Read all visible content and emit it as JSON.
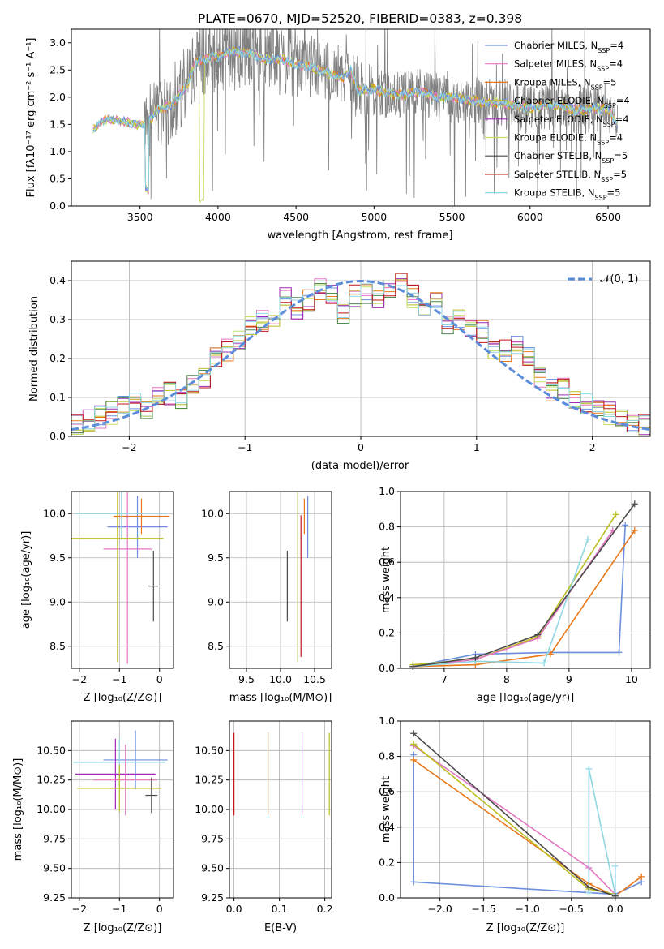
{
  "figure": {
    "title": "PLATE=0670, MJD=52520, FIBERID=0383, z=0.398"
  },
  "colors": {
    "Chabrier MILES": "#6a8fdc",
    "Salpeter MILES": "#e377c2",
    "Kroupa MILES": "#e8781a",
    "Chabrier ELODIE": "#bcbd22",
    "Salpeter ELODIE": "#9b2bb5",
    "Kroupa ELODIE": "#c5e06a",
    "Chabrier STELIB": "#4a4a4a",
    "Salpeter STELIB": "#c0141a",
    "Kroupa STELIB": "#8fd6e2",
    "data": "#808080",
    "normal": "#5b8ddb",
    "green": "#4f8a4f"
  },
  "chart_data": [
    {
      "id": "spectrum",
      "type": "line",
      "title": "PLATE=0670, MJD=52520, FIBERID=0383, z=0.398",
      "xlabel": "wavelength [Angstrom, rest frame]",
      "ylabel": "Flux [fλ10⁻¹⁷ erg cm⁻² s⁻¹ A⁻¹]",
      "xlim": [
        3060,
        6770
      ],
      "ylim": [
        0,
        3.25
      ],
      "xticks": [
        3500,
        4000,
        4500,
        5000,
        5500,
        6000,
        6500
      ],
      "yticks": [
        "0.0",
        "0.5",
        "1.0",
        "1.5",
        "2.0",
        "2.5",
        "3.0"
      ],
      "legend_position": "top-right",
      "legend": [
        {
          "name": "Chabrier MILES",
          "nssp": "4"
        },
        {
          "name": "Salpeter MILES",
          "nssp": "4"
        },
        {
          "name": "Kroupa MILES",
          "nssp": "5"
        },
        {
          "name": "Chabrier ELODIE",
          "nssp": "4"
        },
        {
          "name": "Salpeter ELODIE",
          "nssp": "4"
        },
        {
          "name": "Kroupa ELODIE",
          "nssp": "4"
        },
        {
          "name": "Chabrier STELIB",
          "nssp": "5"
        },
        {
          "name": "Salpeter STELIB",
          "nssp": "5"
        },
        {
          "name": "Kroupa STELIB",
          "nssp": "5"
        }
      ],
      "continuum_knots": [
        [
          3200,
          1.4
        ],
        [
          3250,
          1.55
        ],
        [
          3300,
          1.6
        ],
        [
          3400,
          1.55
        ],
        [
          3500,
          1.5
        ],
        [
          3550,
          1.5
        ],
        [
          3600,
          1.75
        ],
        [
          3700,
          1.85
        ],
        [
          3800,
          2.2
        ],
        [
          3850,
          2.6
        ],
        [
          3900,
          2.7
        ],
        [
          4000,
          2.75
        ],
        [
          4100,
          2.85
        ],
        [
          4200,
          2.8
        ],
        [
          4300,
          2.7
        ],
        [
          4400,
          2.7
        ],
        [
          4500,
          2.6
        ],
        [
          4600,
          2.55
        ],
        [
          4700,
          2.45
        ],
        [
          4800,
          2.35
        ],
        [
          4850,
          2.5
        ],
        [
          4900,
          2.1
        ],
        [
          5000,
          2.15
        ],
        [
          5100,
          2.05
        ],
        [
          5200,
          2.05
        ],
        [
          5300,
          2.1
        ],
        [
          5400,
          2.0
        ],
        [
          5500,
          2.0
        ],
        [
          5600,
          1.95
        ],
        [
          5700,
          1.9
        ],
        [
          5800,
          1.9
        ],
        [
          5900,
          1.85
        ],
        [
          6000,
          1.8
        ],
        [
          6100,
          1.85
        ],
        [
          6200,
          1.85
        ],
        [
          6300,
          1.75
        ],
        [
          6400,
          1.8
        ],
        [
          6500,
          1.78
        ],
        [
          6560,
          1.5
        ]
      ]
    },
    {
      "id": "residuals",
      "type": "line",
      "xlabel": "(data-model)/error",
      "ylabel": "Normed distribution",
      "xlim": [
        -2.5,
        2.5
      ],
      "ylim": [
        0,
        0.45
      ],
      "xticks": [
        "−2",
        "−1",
        "0",
        "1",
        "2"
      ],
      "yticks": [
        "0.0",
        "0.1",
        "0.2",
        "0.3",
        "0.4"
      ],
      "legend_position": "top-right",
      "legend": [
        {
          "name": "𝒩(0, 1)"
        }
      ],
      "bin_edges": [
        -2.5,
        -2.4,
        -2.3,
        -2.2,
        -2.1,
        -2.0,
        -1.9,
        -1.8,
        -1.7,
        -1.6,
        -1.5,
        -1.4,
        -1.3,
        -1.2,
        -1.1,
        -1.0,
        -0.9,
        -0.8,
        -0.7,
        -0.6,
        -0.5,
        -0.4,
        -0.3,
        -0.2,
        -0.1,
        0.0,
        0.1,
        0.2,
        0.3,
        0.4,
        0.5,
        0.6,
        0.7,
        0.8,
        0.9,
        1.0,
        1.1,
        1.2,
        1.3,
        1.4,
        1.5,
        1.6,
        1.7,
        1.8,
        1.9,
        2.0,
        2.1,
        2.2,
        2.3,
        2.4,
        2.5
      ],
      "base_hist": [
        0.03,
        0.04,
        0.05,
        0.06,
        0.08,
        0.09,
        0.07,
        0.1,
        0.11,
        0.1,
        0.14,
        0.15,
        0.2,
        0.22,
        0.25,
        0.29,
        0.3,
        0.3,
        0.36,
        0.33,
        0.35,
        0.38,
        0.37,
        0.32,
        0.36,
        0.37,
        0.35,
        0.38,
        0.4,
        0.36,
        0.33,
        0.34,
        0.29,
        0.3,
        0.27,
        0.27,
        0.22,
        0.22,
        0.23,
        0.2,
        0.15,
        0.12,
        0.12,
        0.1,
        0.08,
        0.07,
        0.06,
        0.05,
        0.04,
        0.03
      ]
    },
    {
      "id": "age_vs_z",
      "type": "scatter",
      "xlabel": "Z [log₁₀(Z/Z⊙)]",
      "ylabel": "age  [log₁₀(age/yr)]",
      "xlim": [
        -2.2,
        0.35
      ],
      "ylim": [
        8.25,
        10.25
      ],
      "xticks": [
        -2,
        -1,
        0
      ],
      "yticks": [
        "8.5",
        "9.0",
        "9.5",
        "10.0"
      ],
      "points": [
        {
          "model": "Chabrier MILES",
          "x": -0.55,
          "y": 9.85,
          "xerr": 0.75,
          "yerr": 0.35
        },
        {
          "model": "Kroupa MILES",
          "x": -0.45,
          "y": 9.97,
          "xerr": 0.7,
          "yerr": 0.2
        },
        {
          "model": "Salpeter MILES",
          "x": -0.8,
          "y": 9.6,
          "xerr": 0.6,
          "yerr": 1.3
        },
        {
          "model": "Kroupa STELIB",
          "x": -0.95,
          "y": 10.0,
          "xerr": 1.15,
          "yerr": 0.3
        },
        {
          "model": "Chabrier ELODIE",
          "x": -1.05,
          "y": 9.72,
          "xerr": 1.15,
          "yerr": 1.4
        },
        {
          "model": "Chabrier STELIB",
          "x": -0.15,
          "y": 9.18,
          "xerr": 0.12,
          "yerr": 0.4
        }
      ]
    },
    {
      "id": "age_vs_mass",
      "type": "scatter",
      "xlabel": "mass [log₁₀(M/M⊙)]",
      "ylabel": "",
      "xlim": [
        9.25,
        10.75
      ],
      "ylim": [
        8.25,
        10.25
      ],
      "xticks": [
        "9.5",
        "10.0",
        "10.5"
      ],
      "yticks": [
        "8.5",
        "9.0",
        "9.5",
        "10.0"
      ],
      "points": [
        {
          "model": "Chabrier MILES",
          "x": 10.4,
          "y": 9.85,
          "yerr": 0.35
        },
        {
          "model": "Kroupa MILES",
          "x": 10.35,
          "y": 9.97,
          "yerr": 0.2
        },
        {
          "model": "Salpeter STELIB",
          "x": 10.3,
          "y": 9.18,
          "yerr": 0.8
        },
        {
          "model": "Kroupa ELODIE",
          "x": 10.25,
          "y": 9.72,
          "yerr": 1.4
        },
        {
          "model": "Chabrier STELIB",
          "x": 10.1,
          "y": 9.18,
          "yerr": 0.4
        }
      ]
    },
    {
      "id": "mass_weight_vs_age",
      "type": "line",
      "xlabel": "age  [log₁₀(age/yr)]",
      "ylabel": "mass weight",
      "xlim": [
        6.3,
        10.3
      ],
      "ylim": [
        0,
        1.0
      ],
      "xticks": [
        "7",
        "8",
        "9",
        "10"
      ],
      "yticks": [
        "0.0",
        "0.2",
        "0.4",
        "0.6",
        "0.8",
        "1.0"
      ],
      "series": [
        {
          "model": "Chabrier MILES",
          "x": [
            6.5,
            7.5,
            8.7,
            9.8,
            9.9
          ],
          "y": [
            0.01,
            0.08,
            0.09,
            0.09,
            0.81
          ]
        },
        {
          "model": "Kroupa MILES",
          "x": [
            6.5,
            7.5,
            8.7,
            10.05
          ],
          "y": [
            0.01,
            0.02,
            0.08,
            0.78
          ]
        },
        {
          "model": "Chabrier ELODIE",
          "x": [
            6.5,
            7.5,
            8.5,
            9.75
          ],
          "y": [
            0.02,
            0.05,
            0.18,
            0.87
          ]
        },
        {
          "model": "Salpeter MILES",
          "x": [
            6.5,
            7.5,
            8.5,
            9.7
          ],
          "y": [
            0.01,
            0.05,
            0.17,
            0.78
          ]
        },
        {
          "model": "Kroupa STELIB",
          "x": [
            6.5,
            7.5,
            8.6,
            9.3
          ],
          "y": [
            0.01,
            0.04,
            0.03,
            0.73
          ]
        },
        {
          "model": "Chabrier STELIB",
          "x": [
            6.5,
            7.5,
            8.5,
            10.05
          ],
          "y": [
            0.01,
            0.06,
            0.19,
            0.93
          ]
        }
      ]
    },
    {
      "id": "mass_vs_z",
      "type": "scatter",
      "xlabel": "Z [log₁₀(Z/Z⊙)]",
      "ylabel": "mass [log₁₀(M/M⊙)]",
      "xlim": [
        -2.2,
        0.35
      ],
      "ylim": [
        9.25,
        10.75
      ],
      "xticks": [
        -2,
        -1,
        0
      ],
      "yticks": [
        "9.25",
        "9.50",
        "9.75",
        "10.00",
        "10.25",
        "10.50"
      ],
      "points": [
        {
          "model": "Chabrier MILES",
          "x": -0.6,
          "y": 10.42,
          "xerr": 0.8,
          "yerr": 0.25
        },
        {
          "model": "Kroupa STELIB",
          "x": -1.0,
          "y": 10.4,
          "xerr": 1.15,
          "yerr": 0.2
        },
        {
          "model": "Salpeter ELODIE",
          "x": -1.1,
          "y": 10.3,
          "xerr": 1.0,
          "yerr": 0.3
        },
        {
          "model": "Salpeter MILES",
          "x": -0.85,
          "y": 10.25,
          "xerr": 0.8,
          "yerr": 0.3
        },
        {
          "model": "Chabrier ELODIE",
          "x": -1.0,
          "y": 10.18,
          "xerr": 1.05,
          "yerr": 0.2
        },
        {
          "model": "Chabrier STELIB",
          "x": -0.2,
          "y": 10.12,
          "xerr": 0.15,
          "yerr": 0.15
        }
      ]
    },
    {
      "id": "mass_vs_ebv",
      "type": "scatter",
      "xlabel": "E(B-V)",
      "ylabel": "",
      "xlim": [
        -0.01,
        0.215
      ],
      "ylim": [
        9.25,
        10.75
      ],
      "xticks": [
        "0.0",
        "0.1",
        "0.2"
      ],
      "yticks": [
        "9.25",
        "9.50",
        "9.75",
        "10.00",
        "10.25",
        "10.50"
      ],
      "points": [
        {
          "model": "Salpeter STELIB",
          "x": 0.0,
          "y": 10.3,
          "yerr": 0.35
        },
        {
          "model": "Kroupa MILES",
          "x": 0.075,
          "y": 10.3,
          "yerr": 0.35
        },
        {
          "model": "Salpeter MILES",
          "x": 0.15,
          "y": 10.3,
          "yerr": 0.35
        },
        {
          "model": "Chabrier ELODIE",
          "x": 0.21,
          "y": 10.3,
          "yerr": 0.35
        }
      ]
    },
    {
      "id": "mass_weight_vs_z",
      "type": "line",
      "xlabel": "Z [log₁₀(Z/Z⊙)]",
      "ylabel": "mass weight",
      "xlim": [
        -2.45,
        0.4
      ],
      "ylim": [
        0,
        1.0
      ],
      "xticks": [
        "−2.0",
        "−1.5",
        "−1.0",
        "−0.5",
        "0.0"
      ],
      "yticks": [
        "0.0",
        "0.2",
        "0.4",
        "0.6",
        "0.8",
        "1.0"
      ],
      "series": [
        {
          "model": "Chabrier MILES",
          "x": [
            -2.3,
            -2.3,
            0.0,
            0.3
          ],
          "y": [
            0.81,
            0.09,
            0.02,
            0.09
          ]
        },
        {
          "model": "Kroupa MILES",
          "x": [
            -2.3,
            -0.3,
            0.0,
            0.3
          ],
          "y": [
            0.78,
            0.08,
            0.01,
            0.12
          ]
        },
        {
          "model": "Salpeter MILES",
          "x": [
            -2.3,
            -0.3,
            0.0
          ],
          "y": [
            0.86,
            0.17,
            0.02
          ]
        },
        {
          "model": "Chabrier ELODIE",
          "x": [
            -2.3,
            -0.3,
            0.0
          ],
          "y": [
            0.87,
            0.05,
            0.02
          ]
        },
        {
          "model": "Kroupa STELIB",
          "x": [
            -0.3,
            -0.3,
            0.0,
            0.0
          ],
          "y": [
            0.03,
            0.73,
            0.02,
            0.18
          ]
        },
        {
          "model": "Chabrier STELIB",
          "x": [
            -2.3,
            -0.3,
            0.0
          ],
          "y": [
            0.93,
            0.06,
            0.01
          ]
        }
      ]
    }
  ]
}
